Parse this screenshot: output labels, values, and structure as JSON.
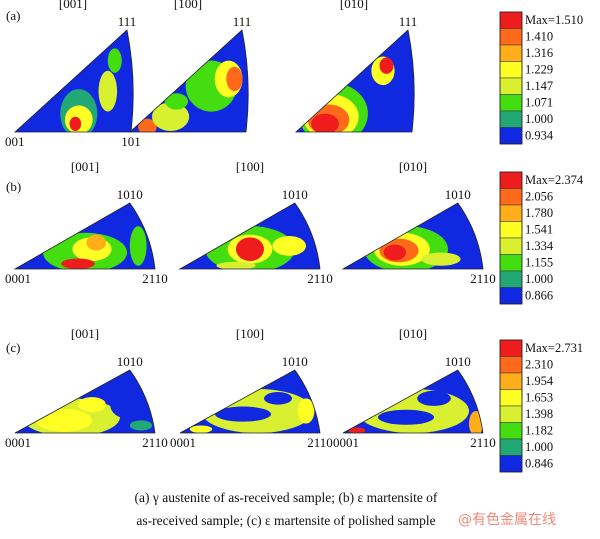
{
  "rows": [
    {
      "label": "(a)",
      "legend": [
        "Max=1.510",
        "1.410",
        "1.316",
        "1.229",
        "1.147",
        "1.071",
        "1.000",
        "0.934"
      ],
      "panels": [
        {
          "direction": "[001]",
          "top": "111",
          "left": "001",
          "right": "101"
        },
        {
          "direction": "[100]",
          "top": "111",
          "left": "",
          "right": ""
        },
        {
          "direction": "[010]",
          "top": "111",
          "left": "",
          "right": ""
        }
      ]
    },
    {
      "label": "(b)",
      "legend": [
        "Max=2.374",
        "2.056",
        "1.780",
        "1.541",
        "1.334",
        "1.155",
        "1.000",
        "0.866"
      ],
      "panels": [
        {
          "direction": "[001]",
          "top": "1010",
          "left": "0001",
          "right": "2110"
        },
        {
          "direction": "[100]",
          "top": "1010",
          "left": "",
          "right": "2110"
        },
        {
          "direction": "[010]",
          "top": "1010",
          "left": "",
          "right": "2110"
        }
      ]
    },
    {
      "label": "(c)",
      "legend": [
        "Max=2.731",
        "2.310",
        "1.954",
        "1.653",
        "1.398",
        "1.182",
        "1.000",
        "0.846"
      ],
      "panels": [
        {
          "direction": "[001]",
          "top": "1010",
          "left": "0001",
          "right": "2110"
        },
        {
          "direction": "[100]",
          "top": "1010",
          "left": "0001",
          "right": "2110"
        },
        {
          "direction": "[010]",
          "top": "1010",
          "left": "0001",
          "right": "2110"
        }
      ]
    }
  ],
  "legend_colors": [
    "#ee1c1c",
    "#ff6a1a",
    "#ffae1a",
    "#ffff24",
    "#d8f030",
    "#44dd10",
    "#22a874",
    "#1028e0"
  ],
  "caption": {
    "line1": "(a) γ austenite of as-received sample; (b) ε martensite of",
    "line2": "as-received sample; (c) ε martensite of polished sample"
  },
  "watermark": "@有色金属在线"
}
